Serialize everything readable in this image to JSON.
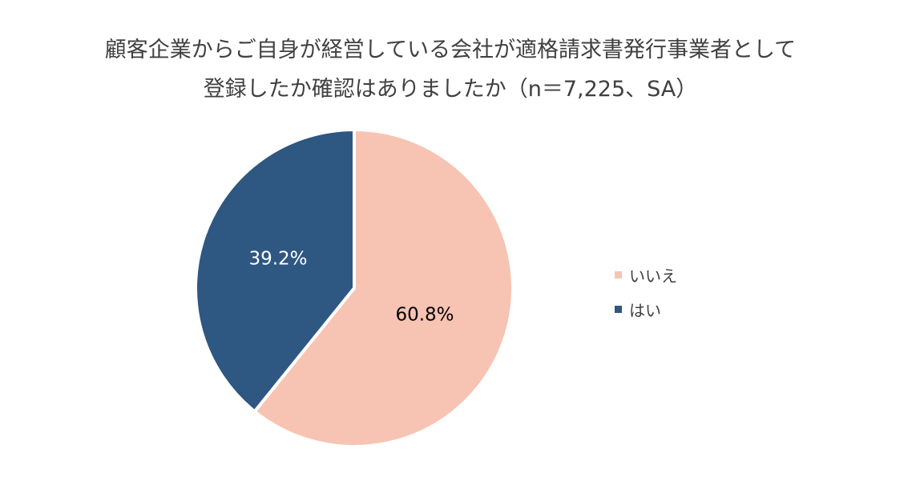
{
  "title": {
    "line1": "顧客企業からご自身が経営している会社が適格請求書発行事業者として",
    "line2": "登録したか確認はありましたか（n＝7,225、SA）"
  },
  "chart_data": {
    "type": "pie",
    "slices": [
      {
        "label": "いいえ",
        "value": 60.8,
        "display": "60.8%",
        "color": "#f7c3b3",
        "label_color": "#000000"
      },
      {
        "label": "はい",
        "value": 39.2,
        "display": "39.2%",
        "color": "#2e5782",
        "label_color": "#ffffff"
      }
    ],
    "legend_position": "right"
  }
}
